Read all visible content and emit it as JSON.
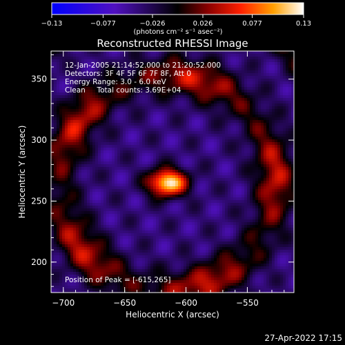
{
  "chart_data": {
    "type": "heatmap",
    "title": "Reconstructed RHESSI Image",
    "xlabel": "Heliocentric X (arcsec)",
    "ylabel": "Heliocentric Y (arcsec)",
    "xlim": [
      -710,
      -512
    ],
    "ylim": [
      175,
      373
    ],
    "xticks": [
      -700,
      -650,
      -600,
      -550
    ],
    "yticks": [
      200,
      250,
      300,
      350
    ],
    "colorbar": {
      "min": -0.13,
      "max": 0.13,
      "ticks": [
        -0.13,
        -0.077,
        -0.026,
        0.026,
        0.077,
        0.13
      ],
      "tick_labels": [
        "−0.13",
        "−0.077",
        "−0.026",
        "0.026",
        "0.077",
        "0.13"
      ],
      "unit_label": "(photons cm⁻² s⁻¹ asec⁻²)"
    },
    "annotations": [
      "12-Jan-2005 21:14:52.000 to 21:20:52.000",
      "Detectors: 3F 4F 5F 6F 7F 8F, Att 0",
      "Energy Range: 3.0 - 6.0 keV",
      "Clean     Total counts: 3.69E+04",
      "Position of Peak = [-615,265]"
    ],
    "peak": {
      "x": -615,
      "y": 265,
      "value": 0.13
    },
    "ring_radius_arcsec": 88,
    "ring_center": [
      -615,
      265
    ],
    "grid": false,
    "legend": "none"
  },
  "footer": {
    "timestamp": "27-Apr-2022 17:15"
  }
}
